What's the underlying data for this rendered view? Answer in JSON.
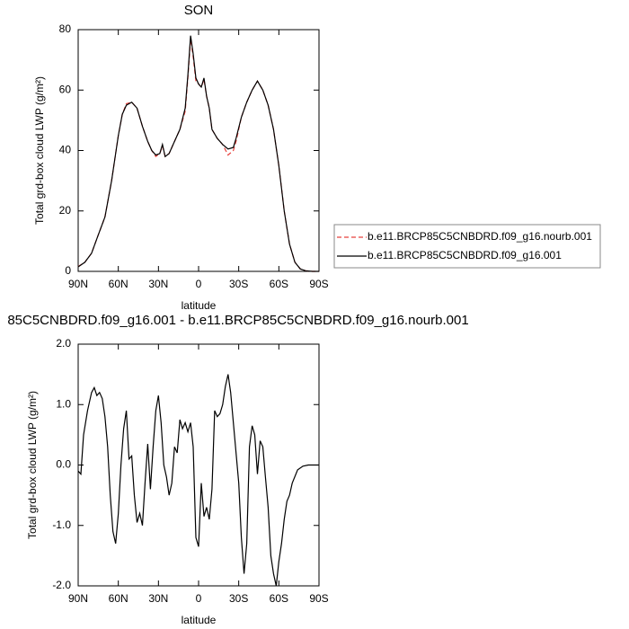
{
  "chart_data": [
    {
      "type": "line",
      "title": "SON",
      "xlabel": "latitude",
      "ylabel": "Total grd-box cloud LWP (g/m²)",
      "xlim": [
        90,
        -90
      ],
      "ylim": [
        0,
        80
      ],
      "xticks": [
        {
          "value": 90,
          "label": "90N"
        },
        {
          "value": 60,
          "label": "60N"
        },
        {
          "value": 30,
          "label": "30N"
        },
        0,
        {
          "value": -30,
          "label": "30S"
        },
        {
          "value": -60,
          "label": "60S"
        },
        {
          "value": -90,
          "label": "90S"
        }
      ],
      "yticks": [
        0,
        20,
        40,
        60,
        80
      ],
      "legend": "right",
      "x": [
        90,
        85,
        80,
        75,
        70,
        65,
        60,
        57,
        54,
        50,
        46,
        42,
        38,
        35,
        32,
        29,
        27,
        25,
        22,
        18,
        14,
        10,
        8,
        6,
        4,
        2,
        0,
        -2,
        -4,
        -6,
        -8,
        -10,
        -14,
        -18,
        -22,
        -26,
        -28,
        -32,
        -36,
        -40,
        -44,
        -48,
        -52,
        -56,
        -60,
        -64,
        -68,
        -72,
        -76,
        -80,
        -85,
        -90
      ],
      "series": [
        {
          "name": "b.e11.BRCP85C5CNBDRD.f09_g16.nourb.001",
          "color": "#e8413c",
          "line_style": "dashed",
          "values": [
            1.6,
            3,
            6,
            12,
            18,
            30,
            45,
            52,
            55.5,
            56,
            54,
            48,
            43,
            40,
            38,
            39,
            41.5,
            38,
            39,
            43,
            47,
            53,
            64,
            77,
            71,
            63,
            62,
            61,
            63.5,
            58,
            54,
            47,
            44,
            42,
            38.5,
            40,
            43,
            51,
            56,
            60,
            63,
            60,
            55,
            47,
            35,
            20,
            9,
            3,
            0.8,
            0.2,
            0,
            0
          ]
        },
        {
          "name": "b.e11.BRCP85C5CNBDRD.f09_g16.001",
          "color": "#000000",
          "line_style": "solid",
          "values": [
            1.5,
            3,
            6,
            12,
            18,
            30,
            45,
            52,
            55,
            56,
            54,
            48,
            43,
            40,
            38.5,
            39,
            42,
            38,
            39,
            43,
            47,
            54,
            65,
            78,
            72,
            64,
            62,
            61,
            64,
            58,
            54,
            47,
            44,
            42,
            40.5,
            41,
            44,
            51,
            56,
            60,
            63,
            60,
            55,
            47,
            35,
            20,
            9,
            3,
            0.8,
            0.2,
            0,
            0
          ]
        }
      ]
    },
    {
      "type": "line",
      "title": "85C5CNBDRD.f09_g16.001 - b.e11.BRCP85C5CNBDRD.f09_g16.nourb.001",
      "xlabel": "latitude",
      "ylabel": "Total grd-box cloud LWP (g/m²)",
      "xlim": [
        90,
        -90
      ],
      "ylim": [
        -2,
        2
      ],
      "xticks": [
        {
          "value": 90,
          "label": "90N"
        },
        {
          "value": 60,
          "label": "60N"
        },
        {
          "value": 30,
          "label": "30N"
        },
        0,
        {
          "value": -30,
          "label": "30S"
        },
        {
          "value": -60,
          "label": "60S"
        },
        {
          "value": -90,
          "label": "90S"
        }
      ],
      "yticks": [
        {
          "value": -2,
          "label": "-2.0"
        },
        {
          "value": -1,
          "label": "-1.0"
        },
        {
          "value": 0,
          "label": "0.0"
        },
        {
          "value": 1,
          "label": "1.0"
        },
        {
          "value": 2,
          "label": "2.0"
        }
      ],
      "color": "#000000",
      "x": [
        90,
        88,
        86,
        83,
        80,
        78,
        76,
        74,
        72,
        70,
        68,
        66,
        64,
        62,
        60,
        58,
        56,
        54,
        52,
        50,
        48,
        46,
        44,
        42,
        40,
        38,
        36,
        34,
        32,
        30,
        28,
        26,
        24,
        22,
        20,
        18,
        16,
        14,
        12,
        10,
        8,
        6,
        4,
        2,
        0,
        -2,
        -4,
        -6,
        -8,
        -10,
        -12,
        -14,
        -16,
        -18,
        -20,
        -22,
        -24,
        -26,
        -28,
        -30,
        -32,
        -34,
        -36,
        -38,
        -40,
        -42,
        -44,
        -46,
        -48,
        -50,
        -52,
        -54,
        -56,
        -58,
        -60,
        -62,
        -64,
        -66,
        -68,
        -70,
        -74,
        -78,
        -82,
        -86,
        -90
      ],
      "values": [
        -0.1,
        -0.15,
        0.5,
        0.9,
        1.2,
        1.28,
        1.15,
        1.2,
        1.1,
        0.8,
        0.3,
        -0.5,
        -1.1,
        -1.3,
        -0.8,
        0.0,
        0.6,
        0.9,
        0.1,
        0.15,
        -0.5,
        -0.95,
        -0.8,
        -1.0,
        -0.3,
        0.35,
        -0.4,
        0.3,
        0.9,
        1.15,
        0.7,
        0.0,
        -0.2,
        -0.5,
        -0.3,
        0.3,
        0.2,
        0.75,
        0.6,
        0.7,
        0.55,
        0.7,
        0.3,
        -1.2,
        -1.35,
        -0.3,
        -0.85,
        -0.7,
        -0.9,
        -0.4,
        0.9,
        0.8,
        0.85,
        1.0,
        1.3,
        1.5,
        1.2,
        0.7,
        0.2,
        -0.3,
        -1.2,
        -1.8,
        -1.3,
        0.3,
        0.65,
        0.5,
        -0.15,
        0.4,
        0.3,
        -0.2,
        -0.7,
        -1.5,
        -1.8,
        -2.0,
        -1.6,
        -1.3,
        -0.9,
        -0.6,
        -0.5,
        -0.3,
        -0.08,
        -0.02,
        0.0,
        0.0,
        0.0
      ]
    }
  ]
}
